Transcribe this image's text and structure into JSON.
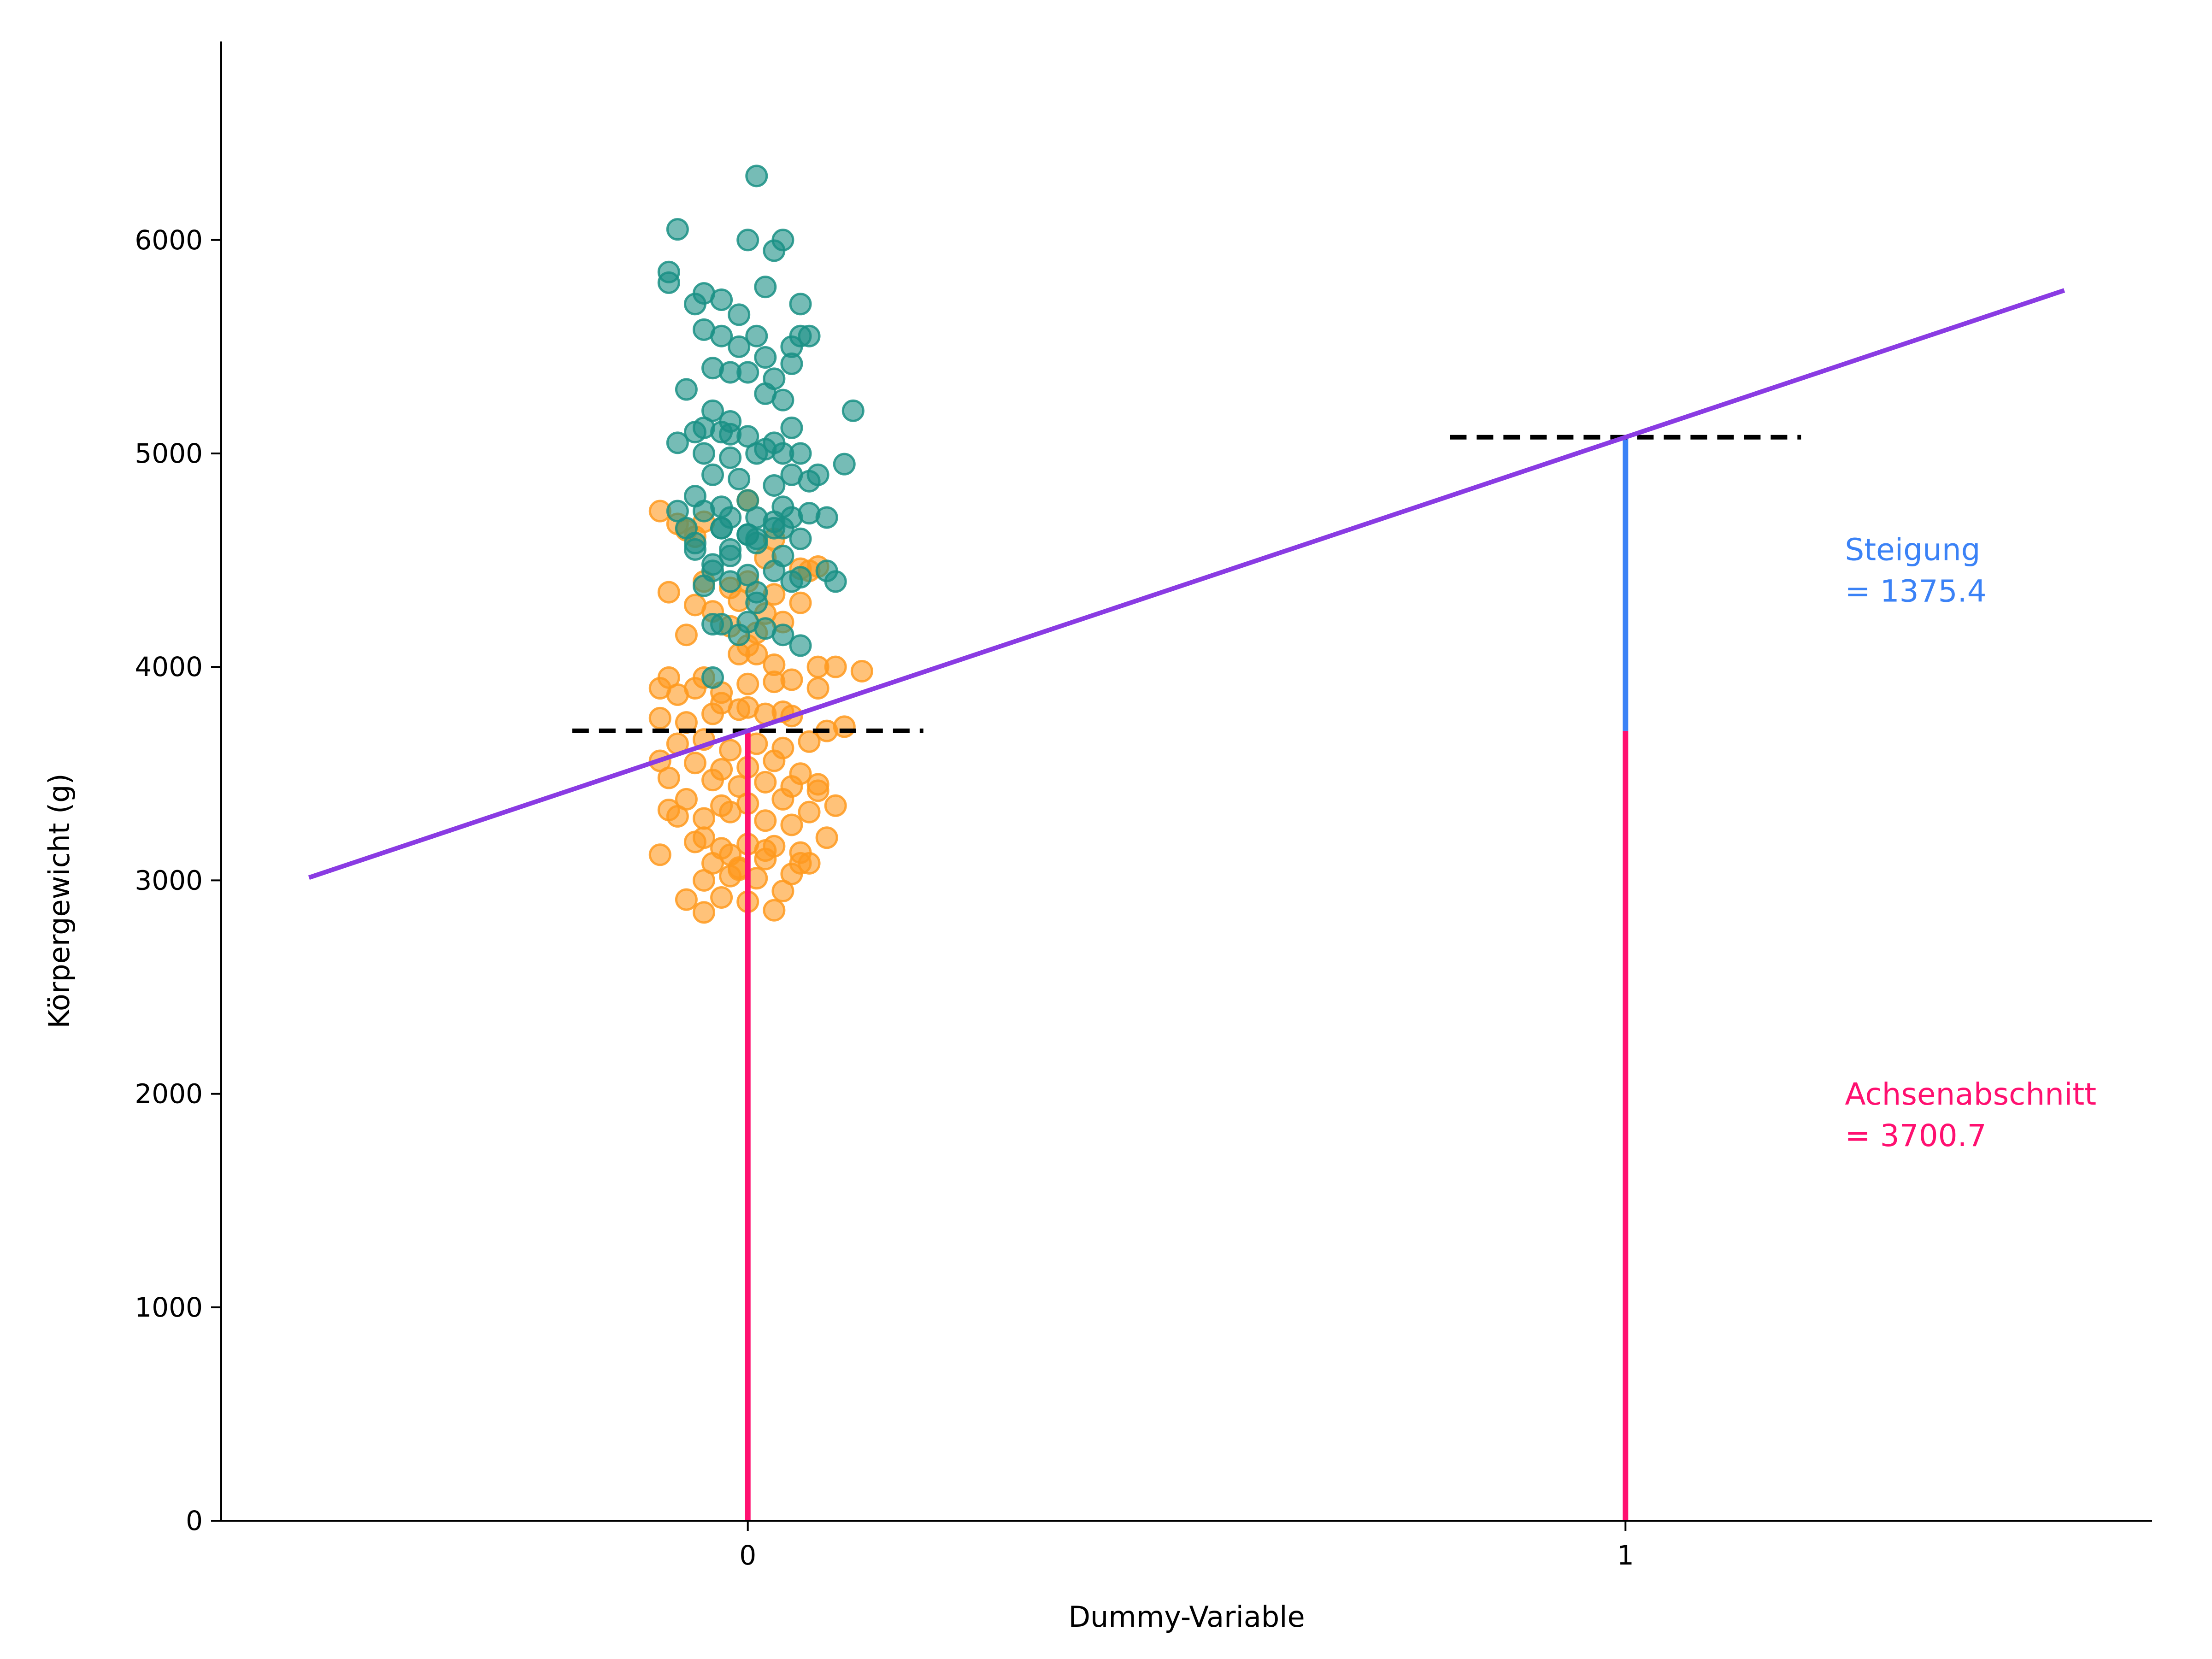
{
  "chart_data": {
    "type": "scatter",
    "title": "",
    "xlabel": "Dummy-Variable",
    "ylabel": "Körpergewicht (g)",
    "xlim": [
      -0.6,
      1.6
    ],
    "ylim": [
      0,
      6930
    ],
    "x_ticks": [
      0,
      1
    ],
    "y_ticks": [
      0,
      1000,
      2000,
      3000,
      4000,
      5000,
      6000
    ],
    "grid": false,
    "legend": "none",
    "colors": {
      "group0": "#ff9a1f",
      "group1": "#1a9085",
      "fit_line": "#8a3be3",
      "mean_line": "#000000",
      "slope": "#3b82f6",
      "intercept": "#ff1070"
    },
    "series": [
      {
        "x": [
          -0.1,
          -0.08,
          -0.07,
          -0.06,
          0.0,
          0.03,
          0.08,
          0.07,
          -0.05,
          0.02,
          -0.09,
          -0.05,
          -0.02,
          0.0,
          0.03,
          0.06,
          -0.06,
          -0.04,
          -0.01,
          0.02,
          0.06,
          -0.07,
          -0.02,
          0.01,
          0.04,
          -0.09,
          -0.05,
          -0.01,
          0.03,
          0.08,
          0.1,
          -0.1,
          -0.08,
          -0.06,
          -0.03,
          0.0,
          0.03,
          0.05,
          0.08,
          0.13,
          -0.1,
          -0.07,
          -0.04,
          -0.01,
          0.02,
          0.05,
          0.09,
          0.11,
          -0.08,
          -0.05,
          -0.02,
          0.01,
          0.04,
          0.07,
          -0.1,
          -0.06,
          -0.03,
          0.0,
          0.03,
          0.06,
          -0.09,
          -0.04,
          -0.01,
          0.02,
          0.05,
          0.08,
          -0.07,
          -0.03,
          0.0,
          0.04,
          0.07,
          0.1,
          -0.08,
          -0.05,
          -0.02,
          0.02,
          0.05,
          0.09,
          -0.06,
          -0.03,
          0.0,
          0.03,
          0.06,
          -0.1,
          -0.04,
          -0.01,
          0.02,
          0.07,
          -0.05,
          -0.02,
          0.01,
          0.05,
          -0.07,
          -0.03,
          0.0,
          0.04,
          -0.05,
          -0.01,
          0.03,
          -0.05,
          -0.02,
          0.02,
          0.06,
          -0.03,
          0.0,
          0.04,
          0.0,
          0.01,
          0.08,
          -0.09
        ],
        "y": [
          4730,
          4670,
          4640,
          4610,
          4780,
          4600,
          4470,
          4450,
          4680,
          4510,
          4350,
          4400,
          4370,
          4400,
          4340,
          4460,
          4290,
          4260,
          4310,
          4250,
          4300,
          4150,
          4190,
          4160,
          4210,
          3950,
          3950,
          4060,
          4010,
          4000,
          4000,
          3900,
          3870,
          3900,
          3880,
          3920,
          3930,
          3940,
          3900,
          3980,
          3760,
          3740,
          3780,
          3800,
          3780,
          3770,
          3700,
          3720,
          3640,
          3660,
          3610,
          3640,
          3620,
          3650,
          3560,
          3550,
          3520,
          3530,
          3560,
          3500,
          3480,
          3470,
          3440,
          3460,
          3440,
          3420,
          3380,
          3350,
          3360,
          3380,
          3320,
          3350,
          3300,
          3290,
          3320,
          3280,
          3260,
          3200,
          3180,
          3150,
          3170,
          3160,
          3130,
          3120,
          3080,
          3060,
          3100,
          3080,
          3000,
          3020,
          3010,
          3030,
          2910,
          2920,
          2900,
          2950,
          2850,
          3050,
          2860,
          3200,
          3120,
          3140,
          3080,
          3830,
          3810,
          3790,
          4100,
          4060,
          3450,
          3330
        ]
      },
      {
        "x": [
          0.01,
          -0.08,
          0.0,
          0.04,
          -0.09,
          -0.09,
          0.03,
          -0.05,
          0.02,
          0.06,
          -0.06,
          -0.03,
          -0.01,
          0.06,
          0.01,
          -0.05,
          -0.03,
          -0.01,
          0.02,
          0.05,
          0.07,
          -0.04,
          -0.02,
          0.0,
          0.03,
          0.05,
          -0.07,
          -0.04,
          -0.02,
          0.02,
          0.04,
          -0.06,
          -0.03,
          0.0,
          0.03,
          0.05,
          -0.08,
          -0.05,
          -0.02,
          0.02,
          0.06,
          0.08,
          -0.04,
          -0.01,
          0.03,
          0.05,
          0.07,
          0.11,
          -0.06,
          -0.03,
          0.0,
          0.04,
          0.07,
          -0.05,
          -0.02,
          0.01,
          0.05,
          0.09,
          -0.07,
          -0.03,
          0.0,
          0.03,
          0.06,
          -0.06,
          -0.02,
          0.01,
          0.04,
          -0.04,
          0.0,
          0.03,
          0.06,
          0.1,
          -0.05,
          -0.02,
          0.01,
          0.05,
          -0.03,
          0.0,
          0.04,
          -0.04,
          -0.01,
          0.02,
          0.06,
          -0.08,
          -0.03,
          0.0,
          0.03,
          -0.06,
          -0.04,
          -0.02,
          0.01,
          0.04,
          -0.04,
          0.01,
          0.04,
          -0.05,
          -0.02,
          0.01,
          0.12,
          0.09
        ],
        "y": [
          6300,
          6050,
          6000,
          6000,
          5800,
          5850,
          5950,
          5750,
          5780,
          5700,
          5700,
          5720,
          5650,
          5550,
          5550,
          5580,
          5550,
          5500,
          5450,
          5500,
          5550,
          5400,
          5380,
          5380,
          5350,
          5420,
          5300,
          5200,
          5150,
          5280,
          5250,
          5100,
          5100,
          5080,
          5050,
          5120,
          5050,
          5000,
          4980,
          5020,
          5000,
          4900,
          4900,
          4880,
          4850,
          4900,
          4870,
          4950,
          4800,
          4750,
          4780,
          4750,
          4720,
          4730,
          4700,
          4700,
          4700,
          4700,
          4650,
          4650,
          4620,
          4650,
          4600,
          4580,
          4550,
          4580,
          4520,
          4450,
          4430,
          4450,
          4420,
          4400,
          4380,
          4400,
          4350,
          4400,
          4200,
          4210,
          4150,
          4200,
          4150,
          4180,
          4100,
          4730,
          4650,
          4620,
          4680,
          4550,
          4480,
          4520,
          4600,
          4650,
          3950,
          4300,
          5000,
          5120,
          5090,
          5000,
          5200,
          4450
        ]
      }
    ],
    "fit_line": {
      "x": [
        -0.5,
        1.5
      ],
      "y": [
        3013,
        5764
      ]
    },
    "group_means": [
      {
        "x_range": [
          -0.2,
          0.2
        ],
        "y": 3700.7
      },
      {
        "x_range": [
          0.8,
          1.2
        ],
        "y": 5076.1
      }
    ],
    "intercept_lines": [
      {
        "x": 0,
        "y_from": 0,
        "y_to": 3700.7
      },
      {
        "x": 1,
        "y_from": 0,
        "y_to": 3700.7
      }
    ],
    "slope_line": {
      "x": 1,
      "y_from": 3700.7,
      "y_to": 5076.1
    },
    "annotations": {
      "slope": {
        "line1": "Steigung",
        "line2": "= 1375.4",
        "x": 1.25,
        "y": 4500
      },
      "intercept": {
        "line1": "Achsenabschnitt",
        "line2": "= 3700.7",
        "x": 1.25,
        "y": 1950
      }
    }
  }
}
